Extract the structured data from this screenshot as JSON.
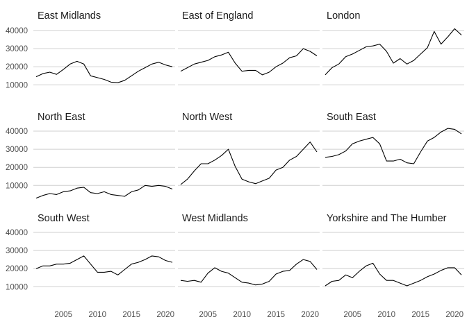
{
  "chart_data": {
    "type": "line",
    "layout": "facet-grid",
    "rows": 3,
    "cols": 3,
    "title": "",
    "xlabel": "",
    "ylabel": "",
    "xlim": [
      2001,
      2021
    ],
    "ylim": [
      0,
      40000
    ],
    "x_ticks": [
      2005,
      2010,
      2015,
      2020
    ],
    "y_ticks": [
      10000,
      20000,
      30000,
      40000
    ],
    "grid": "horizontal major lines",
    "line_color": "#000000",
    "x": [
      2001,
      2002,
      2003,
      2004,
      2005,
      2006,
      2007,
      2008,
      2009,
      2010,
      2011,
      2012,
      2013,
      2014,
      2015,
      2016,
      2017,
      2018,
      2019,
      2020,
      2021
    ],
    "panels": [
      {
        "name": "East Midlands",
        "values": [
          14500,
          16200,
          17000,
          15800,
          18500,
          21500,
          23000,
          21500,
          15000,
          14000,
          13000,
          11500,
          11200,
          12500,
          15000,
          17500,
          19500,
          21500,
          22500,
          21000,
          20000
        ]
      },
      {
        "name": "East of England",
        "values": [
          17500,
          19500,
          21500,
          22500,
          23500,
          25500,
          26500,
          28000,
          22000,
          17500,
          18000,
          18000,
          15500,
          17000,
          20000,
          22000,
          25000,
          26000,
          30000,
          28500,
          26000
        ]
      },
      {
        "name": "London",
        "values": [
          15500,
          19500,
          21500,
          25500,
          27000,
          29000,
          31000,
          31500,
          32500,
          28500,
          22000,
          24500,
          21500,
          23500,
          27000,
          30500,
          39500,
          32500,
          36500,
          41000,
          37500
        ]
      },
      {
        "name": "North East",
        "values": [
          3000,
          4500,
          5500,
          5000,
          6500,
          7000,
          8500,
          9000,
          6000,
          5500,
          6500,
          5000,
          4500,
          4000,
          6500,
          7500,
          10000,
          9500,
          10000,
          9500,
          8000
        ]
      },
      {
        "name": "North West",
        "values": [
          10500,
          13500,
          18000,
          22000,
          22000,
          24000,
          26500,
          30000,
          20500,
          13500,
          12000,
          11000,
          12500,
          14000,
          18500,
          20000,
          24000,
          26000,
          30000,
          34000,
          28500
        ]
      },
      {
        "name": "South East",
        "values": [
          25500,
          26000,
          27000,
          29000,
          33000,
          34500,
          35500,
          36500,
          33000,
          23500,
          23500,
          24500,
          22500,
          22000,
          28500,
          34500,
          36500,
          39500,
          41500,
          41000,
          38500
        ]
      },
      {
        "name": "South West",
        "values": [
          20000,
          21500,
          21500,
          22500,
          22500,
          23000,
          25000,
          27000,
          22500,
          18000,
          18000,
          18500,
          16500,
          19500,
          22500,
          23500,
          25000,
          27000,
          26500,
          24500,
          23500
        ]
      },
      {
        "name": "West Midlands",
        "values": [
          13500,
          13000,
          13500,
          12500,
          17500,
          20500,
          18500,
          17500,
          15000,
          12500,
          12000,
          11000,
          11500,
          13000,
          17000,
          18500,
          19000,
          22500,
          25000,
          24000,
          19500
        ]
      },
      {
        "name": "Yorkshire and The Humber",
        "values": [
          10500,
          13000,
          13500,
          16500,
          15000,
          18500,
          21500,
          23000,
          17000,
          13500,
          13500,
          12000,
          10500,
          12000,
          13500,
          15500,
          17000,
          19000,
          20500,
          20500,
          16500
        ]
      }
    ]
  }
}
